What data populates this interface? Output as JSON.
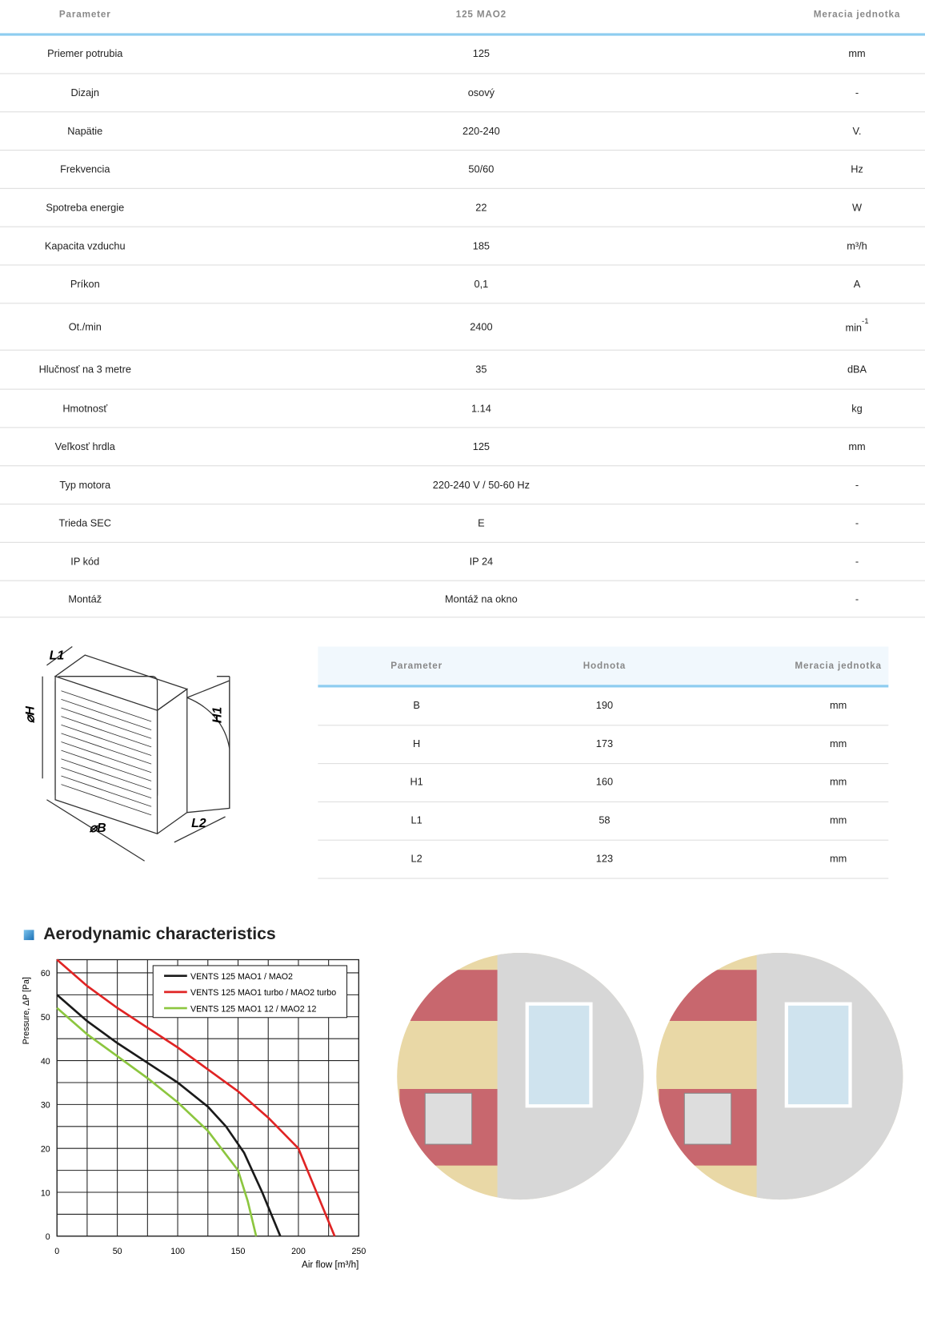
{
  "spec_table": {
    "header": [
      "Parameter",
      "125 MAO2",
      "Meracia jednotka"
    ],
    "rows": [
      [
        "Priemer potrubia",
        "125",
        "mm"
      ],
      [
        "Dizajn",
        "osový",
        "-"
      ],
      [
        "Napätie",
        "220-240",
        "V."
      ],
      [
        "Frekvencia",
        "50/60",
        "Hz"
      ],
      [
        "Spotreba energie",
        "22",
        "W"
      ],
      [
        "Kapacita vzduchu",
        "185",
        "m³/h"
      ],
      [
        "Príkon",
        "0,1",
        "A"
      ],
      [
        "Ot./min",
        "2400",
        {
          "base": "min",
          "sup": "-1"
        }
      ],
      [
        "Hlučnosť na 3 metre",
        "35",
        "dBA"
      ],
      [
        "Hmotnosť",
        "1.14",
        "kg"
      ],
      [
        "Veľkosť hrdla",
        "125",
        "mm"
      ],
      [
        "Typ motora",
        "220-240 V / 50-60 Hz",
        "-"
      ],
      [
        "Trieda SEC",
        "E",
        "-"
      ],
      [
        "IP kód",
        "IP 24",
        "-"
      ],
      [
        "Montáž",
        "Montáž na okno",
        "-"
      ]
    ]
  },
  "drawing": {
    "labels": [
      "L1",
      "⌀H",
      "H1",
      "⌀B",
      "L2"
    ]
  },
  "dimension_table": {
    "header": [
      "Parameter",
      "Hodnota",
      "Meracia jednotka"
    ],
    "rows": [
      [
        "B",
        "190",
        "mm"
      ],
      [
        "H",
        "173",
        "mm"
      ],
      [
        "H1",
        "160",
        "mm"
      ],
      [
        "L1",
        "58",
        "mm"
      ],
      [
        "L2",
        "123",
        "mm"
      ]
    ]
  },
  "chart": {
    "type": "line",
    "title": "Aerodynamic characteristics",
    "x_label": "Air flow [m³/h]",
    "y_label": "Pressure, ΔP [Pa]",
    "xlim": [
      0,
      250
    ],
    "xticks": [
      0,
      50,
      100,
      150,
      200,
      250
    ],
    "ylim": [
      0,
      63
    ],
    "yticks": [
      0,
      10,
      20,
      30,
      40,
      50,
      60
    ],
    "grid": true,
    "series": [
      {
        "name": "VENTS 125 MAO1 / MAO2",
        "color": "#1a1a1a",
        "x": [
          0,
          25,
          50,
          75,
          100,
          125,
          140,
          155,
          170,
          185
        ],
        "values": [
          55,
          49,
          44,
          39.5,
          35,
          29.5,
          25,
          19,
          10,
          0
        ]
      },
      {
        "name": "VENTS 125 MAO1 turbo / MAO2 turbo",
        "color": "#e02424",
        "x": [
          0,
          25,
          50,
          75,
          100,
          125,
          150,
          175,
          200,
          215,
          230
        ],
        "values": [
          63,
          57,
          52,
          47.5,
          43,
          38,
          33,
          27,
          20,
          10,
          0
        ]
      },
      {
        "name": "VENTS 125 MAO1 12 / MAO2 12",
        "color": "#8cc63f",
        "x": [
          0,
          25,
          50,
          75,
          100,
          125,
          150,
          158,
          165
        ],
        "values": [
          52,
          46,
          41,
          36,
          30.5,
          24,
          15,
          8,
          0
        ]
      }
    ]
  }
}
